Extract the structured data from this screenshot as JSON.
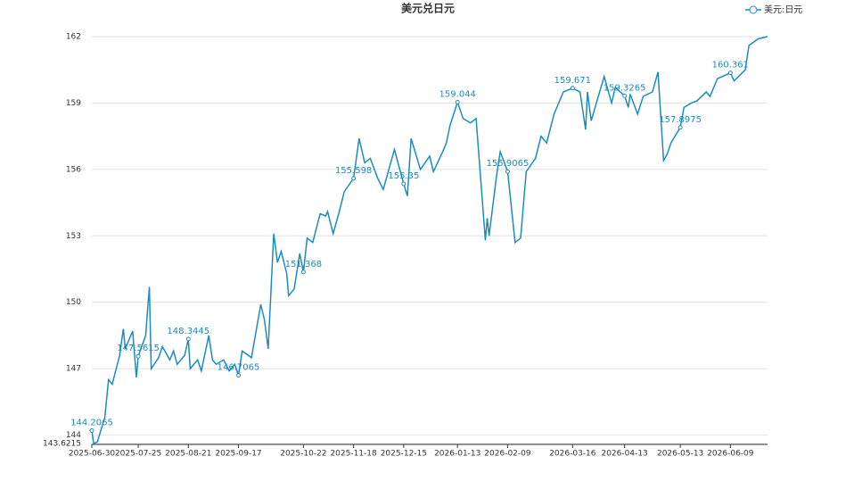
{
  "chart_data": {
    "type": "line",
    "title": "美元兑日元",
    "x": [
      "2025-06-30",
      "2025-07-01",
      "2025-07-03",
      "2025-07-07",
      "2025-07-09",
      "2025-07-11",
      "2025-07-15",
      "2025-07-17",
      "2025-07-18",
      "2025-07-22",
      "2025-07-24",
      "2025-07-25",
      "2025-07-29",
      "2025-07-31",
      "2025-08-01",
      "2025-08-05",
      "2025-08-07",
      "2025-08-11",
      "2025-08-13",
      "2025-08-15",
      "2025-08-19",
      "2025-08-21",
      "2025-08-22",
      "2025-08-26",
      "2025-08-28",
      "2025-09-01",
      "2025-09-03",
      "2025-09-05",
      "2025-09-09",
      "2025-09-12",
      "2025-09-15",
      "2025-09-17",
      "2025-09-19",
      "2025-09-24",
      "2025-09-29",
      "2025-10-01",
      "2025-10-03",
      "2025-10-06",
      "2025-10-08",
      "2025-10-10",
      "2025-10-13",
      "2025-10-14",
      "2025-10-17",
      "2025-10-20",
      "2025-10-22",
      "2025-10-24",
      "2025-10-27",
      "2025-10-31",
      "2025-11-03",
      "2025-11-04",
      "2025-11-07",
      "2025-11-10",
      "2025-11-13",
      "2025-11-18",
      "2025-11-21",
      "2025-11-24",
      "2025-11-27",
      "2025-12-01",
      "2025-12-04",
      "2025-12-10",
      "2025-12-15",
      "2025-12-17",
      "2025-12-19",
      "2025-12-24",
      "2025-12-29",
      "2025-12-31",
      "2026-01-05",
      "2026-01-07",
      "2026-01-09",
      "2026-01-13",
      "2026-01-16",
      "2026-01-20",
      "2026-01-23",
      "2026-01-26",
      "2026-01-28",
      "2026-01-29",
      "2026-01-30",
      "2026-02-03",
      "2026-02-05",
      "2026-02-09",
      "2026-02-13",
      "2026-02-16",
      "2026-02-19",
      "2026-02-24",
      "2026-02-27",
      "2026-03-02",
      "2026-03-06",
      "2026-03-11",
      "2026-03-16",
      "2026-03-20",
      "2026-03-23",
      "2026-03-24",
      "2026-03-26",
      "2026-04-02",
      "2026-04-06",
      "2026-04-08",
      "2026-04-13",
      "2026-04-15",
      "2026-04-16",
      "2026-04-20",
      "2026-04-23",
      "2026-04-28",
      "2026-05-01",
      "2026-05-04",
      "2026-05-06",
      "2026-05-08",
      "2026-05-13",
      "2026-05-15",
      "2026-05-19",
      "2026-05-22",
      "2026-05-27",
      "2026-05-29",
      "2026-06-02",
      "2026-06-09",
      "2026-06-11",
      "2026-06-17",
      "2026-06-19",
      "2026-06-24",
      "2026-06-29"
    ],
    "series": [
      {
        "name": "美元:日元",
        "color": "#1a8cc2",
        "values": [
          144.2065,
          143.6215,
          143.7,
          144.8,
          146.5,
          146.3,
          147.6,
          148.8,
          147.9,
          148.7,
          146.6,
          147.5615,
          148.5,
          150.7,
          147.0,
          147.5,
          148.0,
          147.4,
          147.8,
          147.2,
          147.6,
          148.3445,
          147.0,
          147.4,
          146.9,
          148.5,
          147.4,
          147.2,
          147.4,
          146.9,
          147.2,
          146.7065,
          147.8,
          147.5,
          149.9,
          149.2,
          147.9,
          153.1,
          151.8,
          152.3,
          151.3,
          150.3,
          150.6,
          152.2,
          151.368,
          152.9,
          152.7,
          154.0,
          153.9,
          154.1,
          153.1,
          154.0,
          155.0,
          155.598,
          157.4,
          156.3,
          156.5,
          155.6,
          155.1,
          156.9,
          155.35,
          154.8,
          157.4,
          156.0,
          156.6,
          155.9,
          156.8,
          157.2,
          158.0,
          159.044,
          158.3,
          158.1,
          158.3,
          155.0,
          152.8,
          153.8,
          153.0,
          155.7,
          156.8,
          155.9065,
          152.7,
          152.9,
          155.9,
          156.5,
          157.5,
          157.2,
          158.5,
          159.5,
          159.671,
          159.5,
          157.8,
          159.5,
          158.2,
          160.2,
          159.0,
          159.7,
          159.3265,
          158.8,
          159.4,
          158.5,
          159.3,
          159.5,
          160.4,
          156.4,
          156.7,
          157.2,
          157.8975,
          158.8,
          159.0,
          159.1,
          159.5,
          159.3,
          160.1,
          160.361,
          160.0,
          160.5,
          161.6,
          161.9,
          162.0
        ]
      }
    ],
    "xlim": [
      "2025-06-30",
      "2026-06-29"
    ],
    "xticks": [
      "2025-06-30",
      "2025-07-25",
      "2025-08-21",
      "2025-09-17",
      "2025-10-22",
      "2025-11-18",
      "2025-12-15",
      "2026-01-13",
      "2026-02-09",
      "2026-03-16",
      "2026-04-13",
      "2026-05-13",
      "2026-06-09"
    ],
    "ylim": [
      143.6215,
      162
    ],
    "yticks": [
      143.6215,
      144,
      147,
      150,
      153,
      156,
      159,
      162
    ],
    "grid": true,
    "legend": "top-right"
  }
}
